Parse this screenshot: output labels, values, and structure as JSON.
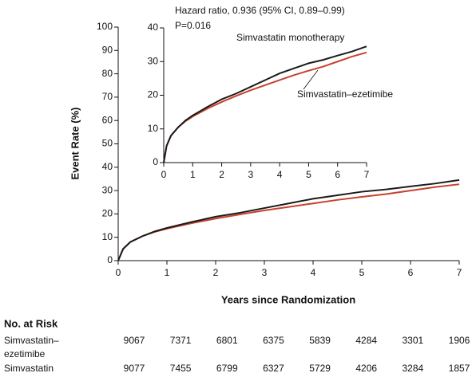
{
  "chart_data": [
    {
      "type": "line",
      "ylabel": "Event Rate (%)",
      "xlabel": "Years since Randomization",
      "xlim": [
        0,
        7
      ],
      "xticks": [
        0,
        1,
        2,
        3,
        4,
        5,
        6,
        7
      ],
      "ylim": [
        0,
        100
      ],
      "yticks": [
        0,
        10,
        20,
        30,
        40,
        50,
        60,
        70,
        80,
        90,
        100
      ],
      "x": [
        0,
        0.1,
        0.25,
        0.5,
        0.75,
        1,
        1.5,
        2,
        2.5,
        3,
        3.5,
        4,
        4.5,
        5,
        5.5,
        6,
        6.5,
        7
      ],
      "series": [
        {
          "color": "#c8412e",
          "values": [
            0,
            5,
            8,
            10.5,
            12.3,
            13.7,
            16,
            18,
            19.8,
            21.5,
            23,
            24.5,
            26,
            27.3,
            28.5,
            30,
            31.5,
            32.7
          ]
        },
        {
          "color": "#1a1a1a",
          "values": [
            0,
            5,
            8,
            10.5,
            12.5,
            14,
            16.5,
            18.8,
            20.5,
            22.5,
            24.5,
            26.5,
            28,
            29.5,
            30.5,
            31.8,
            33,
            34.5
          ]
        }
      ]
    },
    {
      "type": "line",
      "annotations": [
        "Hazard ratio, 0.936 (95% CI, 0.89–0.99)",
        "P=0.016"
      ],
      "xlim": [
        0,
        7
      ],
      "xticks": [
        0,
        1,
        2,
        3,
        4,
        5,
        6,
        7
      ],
      "ylim": [
        0,
        40
      ],
      "yticks": [
        0,
        10,
        20,
        30,
        40
      ],
      "x": [
        0,
        0.1,
        0.25,
        0.5,
        0.75,
        1,
        1.5,
        2,
        2.5,
        3,
        3.5,
        4,
        4.5,
        5,
        5.5,
        6,
        6.5,
        7
      ],
      "series": [
        {
          "name": "Simvastatin–ezetimibe",
          "color": "#c8412e",
          "values": [
            0,
            5,
            8,
            10.5,
            12.3,
            13.7,
            16,
            18,
            19.8,
            21.5,
            23,
            24.5,
            26,
            27.3,
            28.5,
            30,
            31.5,
            32.7
          ]
        },
        {
          "name": "Simvastatin monotherapy",
          "color": "#1a1a1a",
          "values": [
            0,
            5,
            8,
            10.5,
            12.5,
            14,
            16.5,
            18.8,
            20.5,
            22.5,
            24.5,
            26.5,
            28,
            29.5,
            30.5,
            31.8,
            33,
            34.5
          ]
        }
      ]
    }
  ],
  "risk_table": {
    "title": "No. at Risk",
    "rows": [
      {
        "label": [
          "Simvastatin–",
          "ezetimibe"
        ],
        "values": [
          9067,
          7371,
          6801,
          6375,
          5839,
          4284,
          3301,
          1906
        ]
      },
      {
        "label": [
          "Simvastatin"
        ],
        "values": [
          9077,
          7455,
          6799,
          6327,
          5729,
          4206,
          3284,
          1857
        ]
      }
    ]
  }
}
